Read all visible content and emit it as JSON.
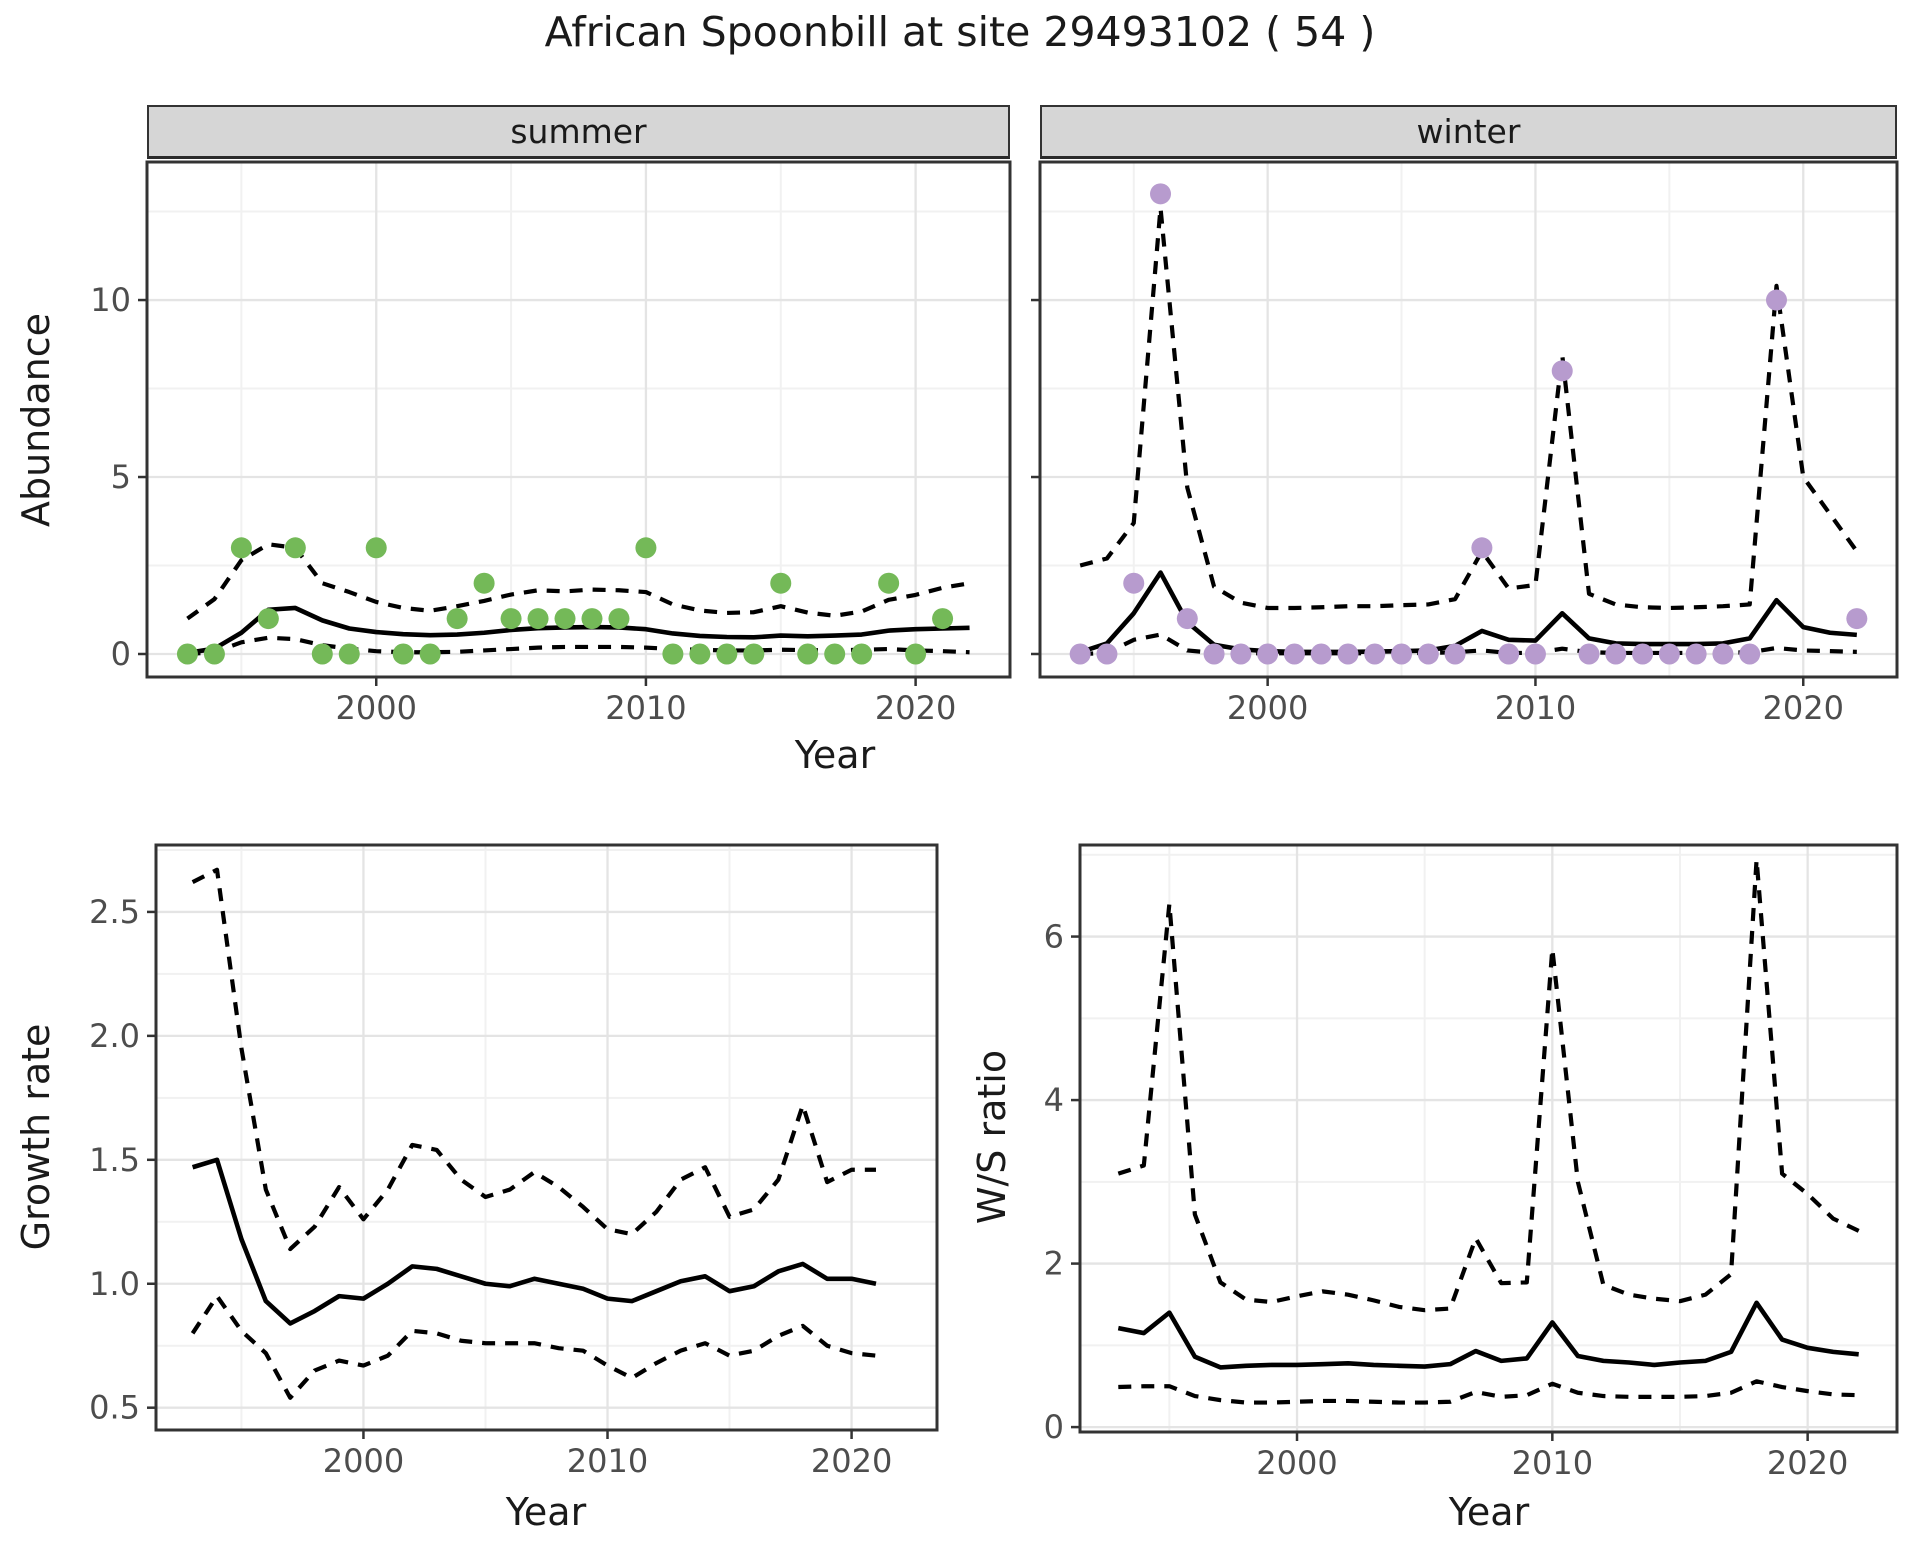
{
  "title": "African Spoonbill at site 29493102 ( 54 )",
  "axis_titles": {
    "abundance_y": "Abundance",
    "top_x": "Year",
    "growth_y": "Growth rate",
    "growth_x": "Year",
    "ws_y": "W/S ratio",
    "ws_x": "Year"
  },
  "facets": {
    "summer": "summer",
    "winter": "winter"
  },
  "colors": {
    "summer_dot": "#74b958",
    "winter_dot": "#b79bce",
    "line": "#000000",
    "grid_major": "#e4e4e4",
    "grid_minor": "#f1f1f1",
    "strip_bg": "#d6d6d6",
    "panel_border": "#333333",
    "axis_text": "#4d4d4d",
    "title_text": "#1a1a1a"
  },
  "chart_data": [
    {
      "id": "abundance-summer",
      "type": "scatter",
      "title": "summer",
      "xlabel": "Year",
      "ylabel": "Abundance",
      "x_domain": [
        1991.5,
        2023.5
      ],
      "y_domain": [
        -0.65,
        13.9
      ],
      "x_ticks": {
        "major": [
          2000,
          2010,
          2020
        ],
        "major_labels": [
          "2000",
          "2010",
          "2020"
        ],
        "minor": [
          1995,
          2005,
          2015
        ]
      },
      "y_ticks": {
        "major": [
          0,
          5,
          10
        ],
        "major_labels": [
          "0",
          "5",
          "10"
        ],
        "minor": [
          2.5,
          7.5,
          12.5
        ]
      },
      "years": [
        1993,
        1994,
        1995,
        1996,
        1997,
        1998,
        1999,
        2000,
        2001,
        2002,
        2003,
        2004,
        2005,
        2006,
        2007,
        2008,
        2009,
        2010,
        2011,
        2012,
        2013,
        2014,
        2015,
        2016,
        2017,
        2018,
        2019,
        2020,
        2021,
        2022
      ],
      "series": [
        {
          "name": "observed-count",
          "kind": "points",
          "color": "#74b958",
          "values": [
            0,
            0,
            3,
            1,
            3,
            0,
            0,
            3,
            0,
            0,
            1,
            2,
            1,
            1,
            1,
            1,
            1,
            3,
            0,
            0,
            0,
            0,
            2,
            0,
            0,
            0,
            2,
            0,
            1,
            null
          ]
        },
        {
          "name": "model-fit",
          "kind": "line",
          "style": "solid",
          "values": [
            0.03,
            0.15,
            0.6,
            1.25,
            1.3,
            0.95,
            0.72,
            0.62,
            0.56,
            0.53,
            0.55,
            0.6,
            0.68,
            0.73,
            0.75,
            0.76,
            0.75,
            0.7,
            0.58,
            0.51,
            0.48,
            0.47,
            0.52,
            0.5,
            0.52,
            0.55,
            0.66,
            0.7,
            0.72,
            0.74
          ]
        },
        {
          "name": "ci-upper",
          "kind": "line",
          "style": "dashed",
          "values": [
            1.0,
            1.55,
            2.65,
            3.1,
            3.0,
            2.0,
            1.75,
            1.47,
            1.3,
            1.22,
            1.35,
            1.5,
            1.68,
            1.8,
            1.77,
            1.82,
            1.8,
            1.75,
            1.4,
            1.23,
            1.16,
            1.18,
            1.35,
            1.17,
            1.08,
            1.2,
            1.53,
            1.67,
            1.87,
            2.0
          ]
        },
        {
          "name": "ci-lower",
          "kind": "line",
          "style": "dashed",
          "values": [
            0.0,
            0.05,
            0.33,
            0.46,
            0.42,
            0.25,
            0.15,
            0.08,
            0.05,
            0.05,
            0.06,
            0.1,
            0.14,
            0.18,
            0.2,
            0.2,
            0.2,
            0.18,
            0.14,
            0.12,
            0.1,
            0.1,
            0.12,
            0.11,
            0.1,
            0.12,
            0.14,
            0.1,
            0.08,
            0.05
          ]
        }
      ]
    },
    {
      "id": "abundance-winter",
      "type": "scatter",
      "title": "winter",
      "xlabel": "Year",
      "ylabel": "Abundance",
      "x_domain": [
        1991.5,
        2023.5
      ],
      "y_domain": [
        -0.65,
        13.9
      ],
      "x_ticks": {
        "major": [
          2000,
          2010,
          2020
        ],
        "major_labels": [
          "2000",
          "2010",
          "2020"
        ],
        "minor": [
          1995,
          2005,
          2015
        ]
      },
      "y_ticks": {
        "major": [
          0,
          5,
          10
        ],
        "major_labels": [],
        "minor": [
          2.5,
          7.5,
          12.5
        ]
      },
      "years": [
        1993,
        1994,
        1995,
        1996,
        1997,
        1998,
        1999,
        2000,
        2001,
        2002,
        2003,
        2004,
        2005,
        2006,
        2007,
        2008,
        2009,
        2010,
        2011,
        2012,
        2013,
        2014,
        2015,
        2016,
        2017,
        2018,
        2019,
        2020,
        2021,
        2022
      ],
      "series": [
        {
          "name": "observed-count",
          "kind": "points",
          "color": "#b79bce",
          "values": [
            0,
            0,
            2,
            13,
            1,
            0,
            0,
            0,
            0,
            0,
            0,
            0,
            0,
            0,
            0,
            3,
            0,
            0,
            8,
            0,
            0,
            0,
            0,
            0,
            0,
            0,
            10,
            null,
            null,
            1
          ]
        },
        {
          "name": "model-fit",
          "kind": "line",
          "style": "solid",
          "values": [
            0.05,
            0.3,
            1.15,
            2.3,
            0.9,
            0.26,
            0.13,
            0.08,
            0.06,
            0.06,
            0.06,
            0.07,
            0.08,
            0.1,
            0.23,
            0.65,
            0.4,
            0.38,
            1.15,
            0.44,
            0.3,
            0.28,
            0.28,
            0.28,
            0.3,
            0.44,
            1.52,
            0.76,
            0.6,
            0.54
          ]
        },
        {
          "name": "ci-upper",
          "kind": "line",
          "style": "dashed",
          "values": [
            2.5,
            2.7,
            3.7,
            12.6,
            4.7,
            1.9,
            1.45,
            1.3,
            1.3,
            1.32,
            1.35,
            1.35,
            1.38,
            1.4,
            1.55,
            2.9,
            1.85,
            1.95,
            8.45,
            1.7,
            1.4,
            1.32,
            1.3,
            1.32,
            1.35,
            1.4,
            10.4,
            5.0,
            3.95,
            2.9
          ]
        },
        {
          "name": "ci-lower",
          "kind": "line",
          "style": "dashed",
          "values": [
            0.0,
            0.03,
            0.4,
            0.55,
            0.1,
            0.03,
            0.02,
            0.02,
            0.02,
            0.02,
            0.02,
            0.02,
            0.02,
            0.03,
            0.05,
            0.1,
            0.03,
            0.03,
            0.15,
            0.05,
            0.03,
            0.03,
            0.03,
            0.03,
            0.03,
            0.05,
            0.17,
            0.1,
            0.08,
            0.06
          ]
        }
      ]
    },
    {
      "id": "growth-rate",
      "type": "line",
      "title": "",
      "xlabel": "Year",
      "ylabel": "Growth rate",
      "x_domain": [
        1991.5,
        2023.5
      ],
      "y_domain": [
        0.41,
        2.77
      ],
      "x_ticks": {
        "major": [
          2000,
          2010,
          2020
        ],
        "major_labels": [
          "2000",
          "2010",
          "2020"
        ],
        "minor": [
          1995,
          2005,
          2015
        ]
      },
      "y_ticks": {
        "major": [
          0.5,
          1.0,
          1.5,
          2.0,
          2.5
        ],
        "major_labels": [
          "0.5",
          "1.0",
          "1.5",
          "2.0",
          "2.5"
        ],
        "minor": [
          0.75,
          1.25,
          1.75,
          2.25,
          2.75
        ]
      },
      "years": [
        1993,
        1994,
        1995,
        1996,
        1997,
        1998,
        1999,
        2000,
        2001,
        2002,
        2003,
        2004,
        2005,
        2006,
        2007,
        2008,
        2009,
        2010,
        2011,
        2012,
        2013,
        2014,
        2015,
        2016,
        2017,
        2018,
        2019,
        2020,
        2021,
        2022
      ],
      "series": [
        {
          "name": "model-fit",
          "kind": "line",
          "style": "solid",
          "values": [
            1.47,
            1.5,
            1.18,
            0.93,
            0.84,
            0.89,
            0.95,
            0.94,
            1.0,
            1.07,
            1.06,
            1.03,
            1.0,
            0.99,
            1.02,
            1.0,
            0.98,
            0.94,
            0.93,
            0.97,
            1.01,
            1.03,
            0.97,
            0.99,
            1.05,
            1.08,
            1.02,
            1.02,
            1.0,
            null
          ]
        },
        {
          "name": "ci-upper",
          "kind": "line",
          "style": "dashed",
          "values": [
            2.62,
            2.67,
            1.95,
            1.38,
            1.14,
            1.23,
            1.39,
            1.26,
            1.38,
            1.56,
            1.54,
            1.42,
            1.35,
            1.38,
            1.45,
            1.39,
            1.31,
            1.22,
            1.2,
            1.29,
            1.42,
            1.47,
            1.27,
            1.3,
            1.42,
            1.72,
            1.41,
            1.46,
            1.46,
            null
          ]
        },
        {
          "name": "ci-lower",
          "kind": "line",
          "style": "dashed",
          "values": [
            0.8,
            0.95,
            0.81,
            0.72,
            0.54,
            0.65,
            0.69,
            0.67,
            0.71,
            0.81,
            0.8,
            0.77,
            0.76,
            0.76,
            0.76,
            0.74,
            0.73,
            0.67,
            0.62,
            0.68,
            0.73,
            0.76,
            0.71,
            0.73,
            0.79,
            0.83,
            0.75,
            0.72,
            0.71,
            null
          ]
        }
      ]
    },
    {
      "id": "ws-ratio",
      "type": "line",
      "title": "",
      "xlabel": "Year",
      "ylabel": "W/S ratio",
      "x_domain": [
        1991.5,
        2023.5
      ],
      "y_domain": [
        -0.06,
        7.12
      ],
      "x_ticks": {
        "major": [
          2000,
          2010,
          2020
        ],
        "major_labels": [
          "2000",
          "2010",
          "2020"
        ],
        "minor": [
          1995,
          2005,
          2015
        ]
      },
      "y_ticks": {
        "major": [
          0,
          2,
          4,
          6
        ],
        "major_labels": [
          "0",
          "2",
          "4",
          "6"
        ],
        "minor": [
          1,
          3,
          5,
          7
        ]
      },
      "years": [
        1993,
        1994,
        1995,
        1996,
        1997,
        1998,
        1999,
        2000,
        2001,
        2002,
        2003,
        2004,
        2005,
        2006,
        2007,
        2008,
        2009,
        2010,
        2011,
        2012,
        2013,
        2014,
        2015,
        2016,
        2017,
        2018,
        2019,
        2020,
        2021,
        2022
      ],
      "series": [
        {
          "name": "model-fit",
          "kind": "line",
          "style": "solid",
          "values": [
            1.21,
            1.15,
            1.4,
            0.86,
            0.73,
            0.75,
            0.76,
            0.76,
            0.77,
            0.78,
            0.76,
            0.75,
            0.74,
            0.77,
            0.93,
            0.81,
            0.84,
            1.28,
            0.87,
            0.81,
            0.79,
            0.76,
            0.79,
            0.81,
            0.92,
            1.52,
            1.07,
            0.97,
            0.92,
            0.89
          ]
        },
        {
          "name": "ci-upper",
          "kind": "line",
          "style": "dashed",
          "values": [
            3.1,
            3.2,
            6.4,
            2.6,
            1.77,
            1.56,
            1.53,
            1.6,
            1.66,
            1.62,
            1.55,
            1.47,
            1.43,
            1.45,
            2.31,
            1.76,
            1.77,
            5.85,
            3.0,
            1.74,
            1.62,
            1.57,
            1.54,
            1.62,
            1.87,
            6.94,
            3.1,
            2.85,
            2.55,
            2.4
          ]
        },
        {
          "name": "ci-lower",
          "kind": "line",
          "style": "dashed",
          "values": [
            0.49,
            0.5,
            0.5,
            0.38,
            0.33,
            0.3,
            0.3,
            0.31,
            0.32,
            0.32,
            0.31,
            0.3,
            0.3,
            0.31,
            0.43,
            0.37,
            0.39,
            0.53,
            0.42,
            0.38,
            0.37,
            0.37,
            0.37,
            0.38,
            0.42,
            0.56,
            0.49,
            0.44,
            0.4,
            0.39
          ]
        }
      ]
    }
  ]
}
